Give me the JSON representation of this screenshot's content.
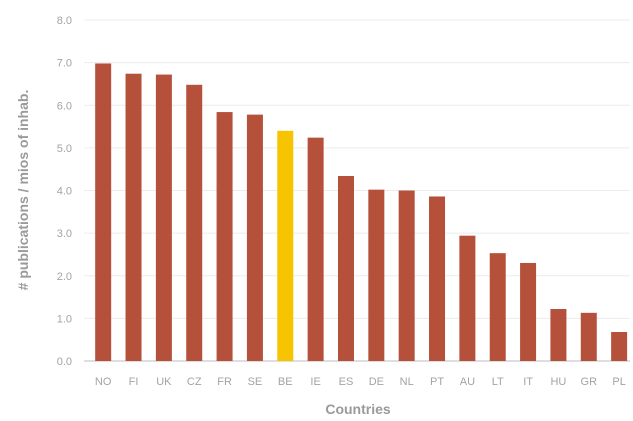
{
  "chart_data": {
    "type": "bar",
    "categories": [
      "NO",
      "FI",
      "UK",
      "CZ",
      "FR",
      "SE",
      "BE",
      "IE",
      "ES",
      "DE",
      "NL",
      "PT",
      "AU",
      "LT",
      "IT",
      "HU",
      "GR",
      "PL"
    ],
    "values": [
      6.98,
      6.74,
      6.72,
      6.48,
      5.84,
      5.78,
      5.4,
      5.24,
      4.34,
      4.02,
      4.0,
      3.86,
      2.94,
      2.53,
      2.3,
      1.22,
      1.13,
      0.68
    ],
    "highlight_category": "BE",
    "colors": {
      "bar": "#b5503a",
      "highlight": "#f6c400",
      "grid": "#ececec",
      "text": "#a3a3a3"
    },
    "ylim": [
      0,
      8
    ],
    "yticks": [
      "0.0",
      "1.0",
      "2.0",
      "3.0",
      "4.0",
      "5.0",
      "6.0",
      "7.0",
      "8.0"
    ],
    "xlabel": "Countries",
    "ylabel": "# publications / mios of inhab.",
    "title": "",
    "grid": true,
    "legend": "none"
  }
}
